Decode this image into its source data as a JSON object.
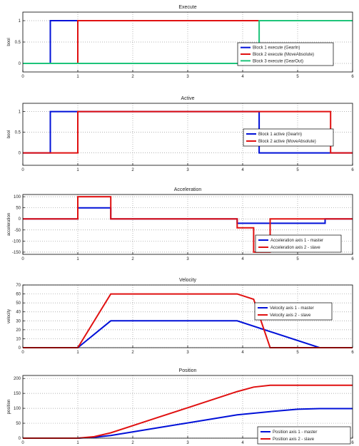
{
  "colors": {
    "blue": "#0010d8",
    "red": "#e01010",
    "green": "#1dc47a",
    "grid": "#9a9a9a",
    "axis": "#000000"
  },
  "chart_data": [
    {
      "type": "line",
      "title": "Execute",
      "xlabel": "",
      "ylabel": "bool",
      "xlim": [
        0,
        6
      ],
      "ylim": [
        -0.2,
        1.2
      ],
      "xticks": [
        "0",
        "1",
        "2",
        "3",
        "4",
        "5",
        "6"
      ],
      "yticks": [
        {
          "v": 0,
          "label": "0"
        },
        {
          "v": 0.5,
          "label": "0.5"
        },
        {
          "v": 1,
          "label": "1"
        }
      ],
      "grid": true,
      "legend_position": "right",
      "series": [
        {
          "name": "Block 1 execute (GearIn)",
          "color": "blue",
          "x": [
            0,
            0.5,
            0.5,
            1.0,
            1.0,
            6
          ],
          "y": [
            0,
            0,
            1,
            1,
            1,
            1
          ]
        },
        {
          "name": "Block 2 execute (MoveAbsolute)",
          "color": "red",
          "x": [
            0,
            1.0,
            1.0,
            4.3,
            4.3,
            6
          ],
          "y": [
            0,
            0,
            1,
            1,
            1,
            1
          ]
        },
        {
          "name": "Block 3 execute (GearOut)",
          "color": "green",
          "x": [
            0,
            4.3,
            4.3,
            6
          ],
          "y": [
            0,
            0,
            1,
            1
          ]
        }
      ]
    },
    {
      "type": "line",
      "title": "Active",
      "xlabel": "",
      "ylabel": "bool",
      "xlim": [
        0,
        6
      ],
      "ylim": [
        -0.3,
        1.2
      ],
      "xticks": [
        "0",
        "1",
        "2",
        "3",
        "4",
        "5",
        "6"
      ],
      "yticks": [
        {
          "v": 0,
          "label": "0"
        },
        {
          "v": 0.5,
          "label": "0.5"
        },
        {
          "v": 1,
          "label": "1"
        }
      ],
      "grid": true,
      "legend_position": "right",
      "series": [
        {
          "name": "Block 1 active (GearIn)",
          "color": "blue",
          "x": [
            0,
            0.5,
            0.5,
            4.3,
            4.3,
            6
          ],
          "y": [
            0,
            0,
            1,
            1,
            0,
            0
          ]
        },
        {
          "name": "Block 2 active (MoveAbsolute)",
          "color": "red",
          "x": [
            0,
            1.0,
            1.0,
            5.6,
            5.6,
            6
          ],
          "y": [
            0,
            0,
            1,
            1,
            0,
            0
          ]
        }
      ]
    },
    {
      "type": "line",
      "title": "Acceleration",
      "xlabel": "",
      "ylabel": "acceleration",
      "xlim": [
        0,
        6
      ],
      "ylim": [
        -160,
        110
      ],
      "xticks": [
        "0",
        "1",
        "2",
        "3",
        "4",
        "5",
        "6"
      ],
      "yticks": [
        {
          "v": -150,
          "label": "-150"
        },
        {
          "v": -100,
          "label": "-100"
        },
        {
          "v": -50,
          "label": "-50"
        },
        {
          "v": 0,
          "label": "0"
        },
        {
          "v": 50,
          "label": "50"
        },
        {
          "v": 100,
          "label": "100"
        }
      ],
      "grid": true,
      "legend_position": "bottom-right",
      "series": [
        {
          "name": "Acceleration axis 1 - master",
          "color": "blue",
          "x": [
            0,
            1.0,
            1.0,
            1.6,
            1.6,
            3.9,
            3.9,
            5.5,
            5.5,
            6
          ],
          "y": [
            0,
            0,
            50,
            50,
            0,
            0,
            -20,
            -20,
            0,
            0
          ]
        },
        {
          "name": "Acceleration axis 2 - slave",
          "color": "red",
          "x": [
            0,
            1.0,
            1.0,
            1.6,
            1.6,
            3.9,
            3.9,
            4.2,
            4.2,
            4.5,
            4.5,
            6
          ],
          "y": [
            0,
            0,
            100,
            100,
            0,
            0,
            -40,
            -40,
            -150,
            -150,
            0,
            0
          ]
        }
      ]
    },
    {
      "type": "line",
      "title": "Velocity",
      "xlabel": "",
      "ylabel": "velocity",
      "xlim": [
        0,
        6
      ],
      "ylim": [
        0,
        70
      ],
      "xticks": [
        "0",
        "1",
        "2",
        "3",
        "4",
        "5",
        "6"
      ],
      "yticks": [
        {
          "v": 0,
          "label": "0"
        },
        {
          "v": 10,
          "label": "10"
        },
        {
          "v": 20,
          "label": "20"
        },
        {
          "v": 30,
          "label": "30"
        },
        {
          "v": 40,
          "label": "40"
        },
        {
          "v": 50,
          "label": "50"
        },
        {
          "v": 60,
          "label": "60"
        },
        {
          "v": 70,
          "label": "70"
        }
      ],
      "grid": true,
      "legend_position": "right",
      "series": [
        {
          "name": "Velocity axis 1 - master",
          "color": "blue",
          "x": [
            0,
            1.0,
            1.6,
            3.9,
            5.4,
            6
          ],
          "y": [
            0,
            0,
            30,
            30,
            0,
            0
          ]
        },
        {
          "name": "Velocity axis 2 - slave",
          "color": "red",
          "x": [
            0,
            1.0,
            1.6,
            3.9,
            4.2,
            4.5,
            6
          ],
          "y": [
            0,
            0,
            60,
            60,
            54,
            0,
            0
          ]
        }
      ]
    },
    {
      "type": "line",
      "title": "Position",
      "xlabel": "",
      "ylabel": "position",
      "xlim": [
        0,
        6
      ],
      "ylim": [
        0,
        210
      ],
      "xticks": [
        "0",
        "1",
        "2",
        "3",
        "4",
        "5",
        "6"
      ],
      "yticks": [
        {
          "v": 0,
          "label": "0"
        },
        {
          "v": 50,
          "label": "50"
        },
        {
          "v": 100,
          "label": "100"
        },
        {
          "v": 150,
          "label": "150"
        },
        {
          "v": 200,
          "label": "200"
        }
      ],
      "grid": true,
      "legend_position": "right",
      "series": [
        {
          "name": "Position axis 1 - master",
          "color": "blue",
          "x": [
            0,
            1.0,
            1.3,
            1.6,
            2.5,
            3.0,
            3.9,
            4.5,
            5.0,
            5.4,
            6
          ],
          "y": [
            0,
            0,
            3,
            9,
            36,
            51,
            78,
            89,
            97,
            99,
            99
          ]
        },
        {
          "name": "Position axis 2 - slave",
          "color": "red",
          "x": [
            0,
            1.0,
            1.3,
            1.6,
            2.0,
            2.5,
            3.0,
            3.5,
            3.9,
            4.2,
            4.5,
            6
          ],
          "y": [
            0,
            0,
            5,
            18,
            42,
            72,
            102,
            132,
            156,
            171,
            177,
            177
          ]
        }
      ]
    }
  ]
}
